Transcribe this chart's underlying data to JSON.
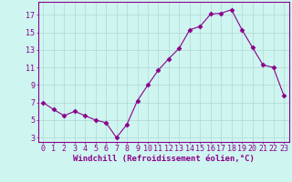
{
  "x": [
    0,
    1,
    2,
    3,
    4,
    5,
    6,
    7,
    8,
    9,
    10,
    11,
    12,
    13,
    14,
    15,
    16,
    17,
    18,
    19,
    20,
    21,
    22,
    23
  ],
  "y": [
    7.0,
    6.2,
    5.5,
    6.0,
    5.5,
    5.0,
    4.7,
    3.0,
    4.5,
    7.2,
    9.0,
    10.7,
    12.0,
    13.2,
    15.3,
    15.7,
    17.1,
    17.2,
    17.6,
    15.3,
    13.3,
    11.3,
    11.0,
    7.8
  ],
  "line_color": "#8B008B",
  "marker": "D",
  "marker_size": 2.5,
  "bg_color": "#cef5f0",
  "grid_color": "#b0d8d3",
  "xlabel": "Windchill (Refroidissement éolien,°C)",
  "ylabel_ticks": [
    3,
    5,
    7,
    9,
    11,
    13,
    15,
    17
  ],
  "xlim": [
    -0.5,
    23.5
  ],
  "ylim": [
    2.5,
    18.5
  ],
  "xlabel_fontsize": 6.5,
  "tick_fontsize": 6,
  "label_color": "#8B008B",
  "axis_color": "#8B008B",
  "spine_color": "#8B008B"
}
